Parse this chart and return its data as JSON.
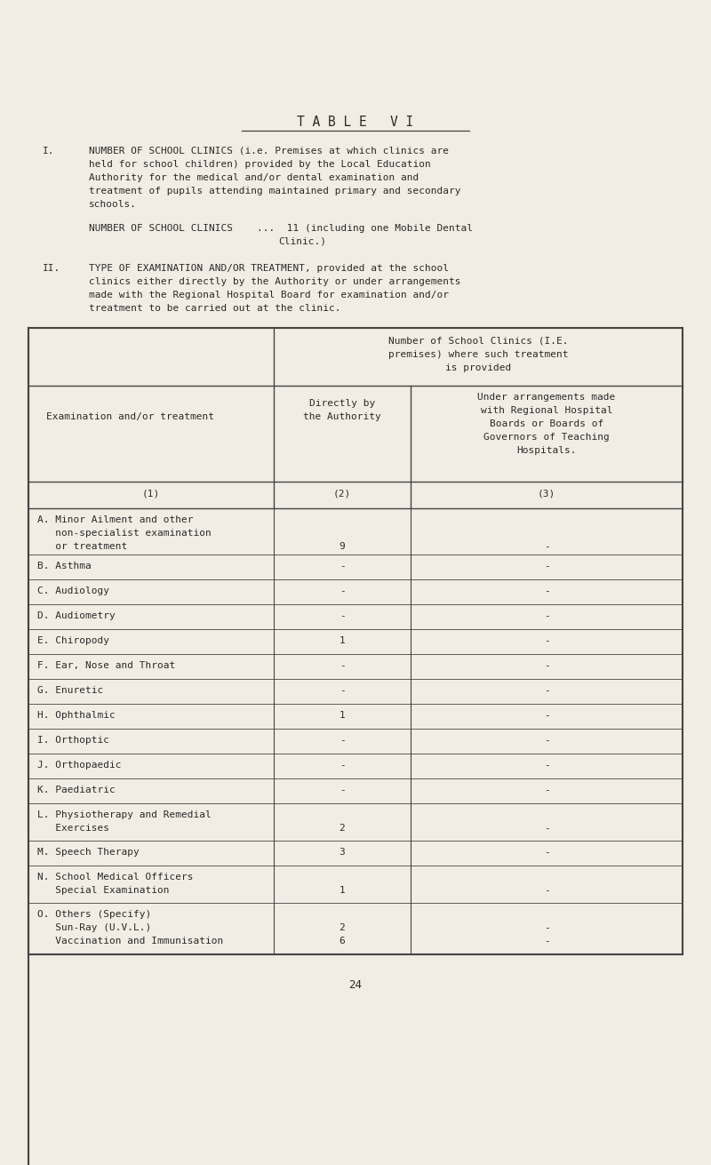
{
  "title": "T A B L E   V I",
  "bg_color": "#f2ede4",
  "text_color": "#2a2a2a",
  "section_I_label": "I.",
  "section_I_text": [
    "NUMBER OF SCHOOL CLINICS (i.e. Premises at which clinics are",
    "held for school children) provided by the Local Education",
    "Authority for the medical and/or dental examination and",
    "treatment of pupils attending maintained primary and secondary",
    "schools."
  ],
  "number_line1": "NUMBER OF SCHOOL CLINICS    ...  11 (including one Mobile Dental",
  "number_line2": "Clinic.)",
  "section_II_label": "II.",
  "section_II_text": [
    "TYPE OF EXAMINATION AND/OR TREATMENT, provided at the school",
    "clinics either directly by the Authority or under arrangements",
    "made with the Regional Hospital Board for examination and/or",
    "treatment to be carried out at the clinic."
  ],
  "rows": [
    {
      "label": "A. Minor Ailment and other\n   non-specialist examination\n   or treatment",
      "col2": "9",
      "col3": "-",
      "lines": 3
    },
    {
      "label": "B. Asthma",
      "col2": "-",
      "col3": "-",
      "lines": 1
    },
    {
      "label": "C. Audiology",
      "col2": "-",
      "col3": "-",
      "lines": 1
    },
    {
      "label": "D. Audiometry",
      "col2": "-",
      "col3": "-",
      "lines": 1
    },
    {
      "label": "E. Chiropody",
      "col2": "1",
      "col3": "-",
      "lines": 1
    },
    {
      "label": "F. Ear, Nose and Throat",
      "col2": "-",
      "col3": "-",
      "lines": 1
    },
    {
      "label": "G. Enuretic",
      "col2": "-",
      "col3": "-",
      "lines": 1
    },
    {
      "label": "H. Ophthalmic",
      "col2": "1",
      "col3": "-",
      "lines": 1
    },
    {
      "label": "I. Orthoptic",
      "col2": "-",
      "col3": "-",
      "lines": 1
    },
    {
      "label": "J. Orthopaedic",
      "col2": "-",
      "col3": "-",
      "lines": 1
    },
    {
      "label": "K. Paediatric",
      "col2": "-",
      "col3": "-",
      "lines": 1
    },
    {
      "label": "L. Physiotherapy and Remedial\n   Exercises",
      "col2": "2",
      "col3": "-",
      "lines": 2
    },
    {
      "label": "M. Speech Therapy",
      "col2": "3",
      "col3": "-",
      "lines": 1
    },
    {
      "label": "N. School Medical Officers\n   Special Examination",
      "col2": "1",
      "col3": "-",
      "lines": 2
    },
    {
      "label": "O. Others (Specify)\n   Sun-Ray (U.V.L.)\n   Vaccination and Immunisation",
      "col2": "2\n6",
      "col3": "-\n-",
      "lines": 3
    }
  ],
  "page_number": "24",
  "font_size": 8.0
}
